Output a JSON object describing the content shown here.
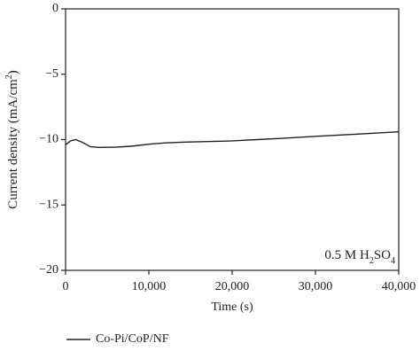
{
  "chart_data": {
    "type": "line",
    "x_label": "Time (s)",
    "y_label": "Current density (mA/cm2)",
    "annotation": "0.5 M H2SO4",
    "x": [
      0,
      600,
      1200,
      2000,
      3000,
      4000,
      6000,
      8000,
      10000,
      12000,
      14000,
      17000,
      20000,
      23000,
      26000,
      30000,
      33000,
      36000,
      40000
    ],
    "series": [
      {
        "name": "Co-Pi/CoP/NF",
        "color": "#222222",
        "values": [
          -10.4,
          -10.1,
          -10.0,
          -10.2,
          -10.55,
          -10.6,
          -10.58,
          -10.5,
          -10.35,
          -10.25,
          -10.2,
          -10.15,
          -10.1,
          -10.0,
          -9.9,
          -9.75,
          -9.65,
          -9.55,
          -9.4
        ]
      }
    ],
    "xlim": [
      0,
      40000
    ],
    "xticks": [
      0,
      {
        "value": 10000,
        "label": "10,000"
      },
      {
        "value": 20000,
        "label": "20,000"
      },
      {
        "value": 30000,
        "label": "30,000"
      },
      {
        "value": 40000,
        "label": "40,000"
      }
    ],
    "ylim": [
      -20,
      0
    ],
    "yticks": [
      0,
      {
        "value": -5,
        "label": "−5"
      },
      {
        "value": -10,
        "label": "−10"
      },
      {
        "value": -15,
        "label": "−15"
      },
      {
        "value": -20,
        "label": "−20"
      }
    ],
    "grid": false
  }
}
